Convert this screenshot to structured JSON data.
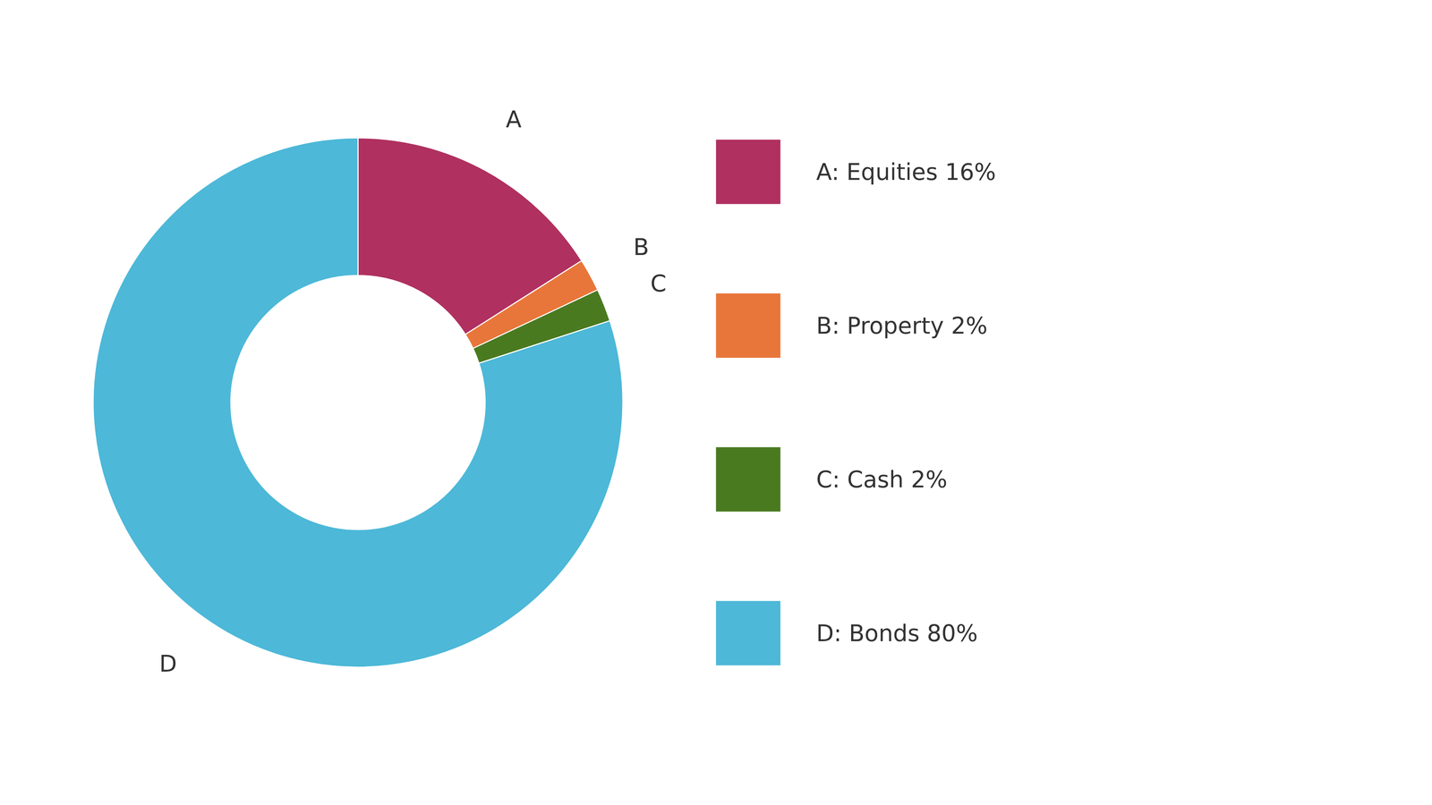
{
  "chart_data": {
    "type": "donut",
    "categories": [
      "A",
      "B",
      "C",
      "D"
    ],
    "values": [
      16,
      2,
      2,
      80
    ],
    "colors": [
      "#b03060",
      "#e8763a",
      "#4a7a20",
      "#4db8d8"
    ],
    "legend": "right",
    "legend_labels": [
      "A: Equities 16%",
      "B: Property 2%",
      "C: Cash 2%",
      "D: Bonds 80%"
    ]
  }
}
